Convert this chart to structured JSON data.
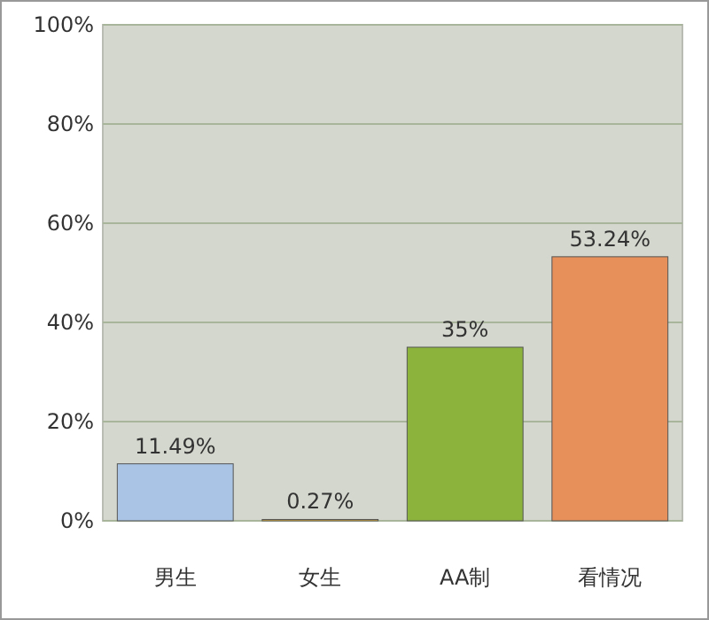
{
  "chart_data": {
    "type": "bar",
    "categories": [
      "男生",
      "女生",
      "AA制",
      "看情况"
    ],
    "values": [
      11.49,
      0.27,
      35,
      53.24
    ],
    "colors": [
      "#a9c4e4",
      "#f0b830",
      "#8cb43c",
      "#e8905a"
    ],
    "value_labels": [
      "11.49%",
      "0.27%",
      "35%",
      "53.24%"
    ],
    "ylim": [
      0,
      100
    ],
    "yticks": [
      {
        "value": 0,
        "label": "0%"
      },
      {
        "value": 20,
        "label": "20%"
      },
      {
        "value": 40,
        "label": "40%"
      },
      {
        "value": 60,
        "label": "60%"
      },
      {
        "value": 80,
        "label": "80%"
      },
      {
        "value": 100,
        "label": "100%"
      }
    ],
    "grid": "y"
  }
}
